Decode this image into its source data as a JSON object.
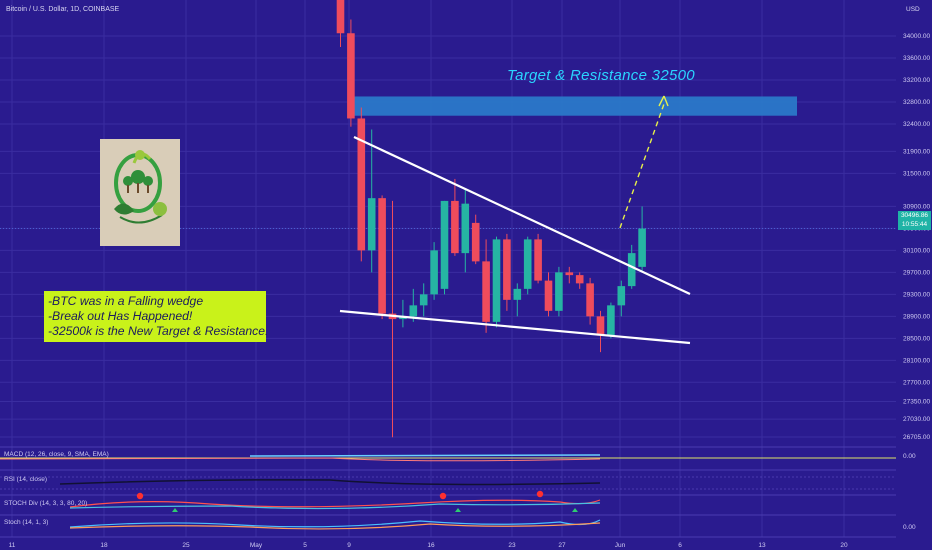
{
  "symbol_title": "Bitcoin / U.S. Dollar, 1D, COINBASE",
  "currency": "USD",
  "annotations": {
    "target_title": "Target & Resistance 32500",
    "notes": [
      "-BTC was in a Falling wedge",
      "-Break out Has Happened!",
      "-32500k is the New Target & Resistance."
    ]
  },
  "last_price_tag": {
    "price": "30496.86",
    "countdown": "10:55:44",
    "color": "#1fb3a6"
  },
  "indicators": {
    "macd": "MACD (12, 26, close, 9, SMA, EMA)",
    "rsi": "RSI (14, close)",
    "stoch_div": "STOCH Div (14, 3, 3, 80, 20)",
    "stoch": "Stoch (14, 1, 3)",
    "macd_value": "0.00",
    "stoch_value": "0.00"
  },
  "colors": {
    "background": "#2a1b8f",
    "up": "#26b5a3",
    "down": "#ef4c5c",
    "resistance_zone": "#2a78c9",
    "wedge": "#ffffff",
    "notes_bg": "#c9f21a",
    "target_text": "#2ad5ff",
    "projection": "#e6f04a"
  },
  "chart_data": {
    "type": "candlestick",
    "title": "Bitcoin / U.S. Dollar, 1D, COINBASE",
    "y_ticks": [
      34000,
      33600,
      33200,
      32800,
      32400,
      31900,
      31500,
      30900,
      30500,
      30100,
      29700,
      29300,
      28900,
      28500,
      28100,
      27700,
      27350,
      27030,
      26705
    ],
    "y_tick_labels": [
      "34000.00",
      "33600.00",
      "33200.00",
      "32800.00",
      "32400.00",
      "31900.00",
      "31500.00",
      "30900.00",
      "30500.00",
      "30100.00",
      "29700.00",
      "29300.00",
      "28900.00",
      "28500.00",
      "28100.00",
      "27700.00",
      "27350.00",
      "27030.00",
      "26705.00"
    ],
    "x_tick_labels": [
      "11",
      "18",
      "25",
      "May",
      "5",
      "9",
      "16",
      "23",
      "27",
      "Jun",
      "6",
      "13",
      "20"
    ],
    "candles": [
      {
        "date": "May 7",
        "open": 35800,
        "high": 36400,
        "low": 33800,
        "close": 34050
      },
      {
        "date": "May 8",
        "open": 34050,
        "high": 34300,
        "low": 32350,
        "close": 32500
      },
      {
        "date": "May 9",
        "open": 32500,
        "high": 32700,
        "low": 29900,
        "close": 30100
      },
      {
        "date": "May 10",
        "open": 30100,
        "high": 32300,
        "low": 29700,
        "close": 31050
      },
      {
        "date": "May 11",
        "open": 31050,
        "high": 31100,
        "low": 28850,
        "close": 28950
      },
      {
        "date": "May 12",
        "open": 28950,
        "high": 31000,
        "low": 26700,
        "close": 28850
      },
      {
        "date": "May 13",
        "open": 28850,
        "high": 29200,
        "low": 28700,
        "close": 28900
      },
      {
        "date": "May 14",
        "open": 28900,
        "high": 29400,
        "low": 28800,
        "close": 29100
      },
      {
        "date": "May 15",
        "open": 29100,
        "high": 29500,
        "low": 28900,
        "close": 29300
      },
      {
        "date": "May 16",
        "open": 29300,
        "high": 30250,
        "low": 29200,
        "close": 30100
      },
      {
        "date": "May 17",
        "open": 29400,
        "high": 31000,
        "low": 29300,
        "close": 31000
      },
      {
        "date": "May 18",
        "open": 31000,
        "high": 31400,
        "low": 30000,
        "close": 30050
      },
      {
        "date": "May 19",
        "open": 30050,
        "high": 31200,
        "low": 29700,
        "close": 30950
      },
      {
        "date": "May 20",
        "open": 30600,
        "high": 30750,
        "low": 29850,
        "close": 29900
      },
      {
        "date": "May 21",
        "open": 29900,
        "high": 30300,
        "low": 28600,
        "close": 28800
      },
      {
        "date": "May 22",
        "open": 28800,
        "high": 30350,
        "low": 28700,
        "close": 30300
      },
      {
        "date": "May 23",
        "open": 30300,
        "high": 30400,
        "low": 29000,
        "close": 29200
      },
      {
        "date": "May 24",
        "open": 29200,
        "high": 29500,
        "low": 28900,
        "close": 29400
      },
      {
        "date": "May 25",
        "open": 29400,
        "high": 30350,
        "low": 29300,
        "close": 30300
      },
      {
        "date": "May 26",
        "open": 30300,
        "high": 30400,
        "low": 29500,
        "close": 29550
      },
      {
        "date": "May 27",
        "open": 29550,
        "high": 29700,
        "low": 28900,
        "close": 29000
      },
      {
        "date": "May 28",
        "open": 29000,
        "high": 29800,
        "low": 28900,
        "close": 29700
      },
      {
        "date": "May 29",
        "open": 29700,
        "high": 29800,
        "low": 29500,
        "close": 29650
      },
      {
        "date": "May 30",
        "open": 29650,
        "high": 29700,
        "low": 29400,
        "close": 29500
      },
      {
        "date": "May 31",
        "open": 29500,
        "high": 29600,
        "low": 28750,
        "close": 28900
      },
      {
        "date": "Jun 1",
        "open": 28900,
        "high": 29000,
        "low": 28250,
        "close": 28550
      },
      {
        "date": "Jun 2",
        "open": 28550,
        "high": 29150,
        "low": 28500,
        "close": 29100
      },
      {
        "date": "Jun 3",
        "open": 29100,
        "high": 29550,
        "low": 28900,
        "close": 29450
      },
      {
        "date": "Jun 4",
        "open": 29450,
        "high": 30200,
        "low": 29400,
        "close": 30050
      },
      {
        "date": "Jun 5",
        "open": 29800,
        "high": 30900,
        "low": 29700,
        "close": 30497
      }
    ],
    "resistance_zone": {
      "low": 32550,
      "high": 32900
    },
    "wedge_upper": [
      {
        "date": "May 9",
        "price": 31750
      },
      {
        "date": "Jun 11",
        "price": 29100
      }
    ],
    "wedge_lower": [
      {
        "date": "May 5",
        "price": 28700
      },
      {
        "date": "Jun 11",
        "price": 28300
      }
    ],
    "projection": [
      {
        "date": "Jun 7",
        "price": 30200
      },
      {
        "date": "Jun 10",
        "price": 32700
      }
    ],
    "ylim": [
      26705,
      34000
    ]
  }
}
